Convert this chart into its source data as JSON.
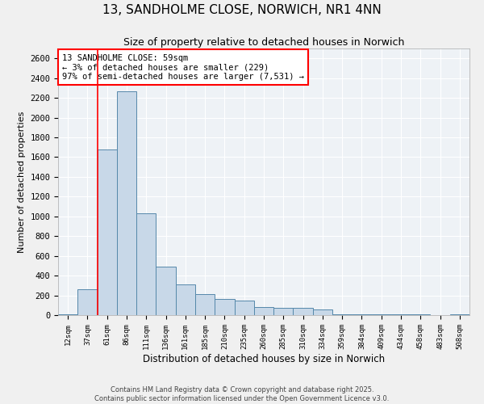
{
  "title_line1": "13, SANDHOLME CLOSE, NORWICH, NR1 4NN",
  "title_line2": "Size of property relative to detached houses in Norwich",
  "xlabel": "Distribution of detached houses by size in Norwich",
  "ylabel": "Number of detached properties",
  "categories": [
    "12sqm",
    "37sqm",
    "61sqm",
    "86sqm",
    "111sqm",
    "136sqm",
    "161sqm",
    "185sqm",
    "210sqm",
    "235sqm",
    "260sqm",
    "285sqm",
    "310sqm",
    "334sqm",
    "359sqm",
    "384sqm",
    "409sqm",
    "434sqm",
    "458sqm",
    "483sqm",
    "508sqm"
  ],
  "values": [
    5,
    260,
    1680,
    2270,
    1030,
    490,
    310,
    210,
    165,
    145,
    80,
    70,
    70,
    55,
    10,
    10,
    5,
    5,
    5,
    0,
    5
  ],
  "bar_color": "#c8d8e8",
  "bar_edge_color": "#5588aa",
  "vline_color": "red",
  "vline_x_index": 1.5,
  "annotation_text": "13 SANDHOLME CLOSE: 59sqm\n← 3% of detached houses are smaller (229)\n97% of semi-detached houses are larger (7,531) →",
  "annotation_box_color": "red",
  "annotation_text_color": "black",
  "ylim": [
    0,
    2700
  ],
  "yticks": [
    0,
    200,
    400,
    600,
    800,
    1000,
    1200,
    1400,
    1600,
    1800,
    2000,
    2200,
    2400,
    2600
  ],
  "background_color": "#eef2f6",
  "grid_color": "#ffffff",
  "footer_line1": "Contains HM Land Registry data © Crown copyright and database right 2025.",
  "footer_line2": "Contains public sector information licensed under the Open Government Licence v3.0."
}
